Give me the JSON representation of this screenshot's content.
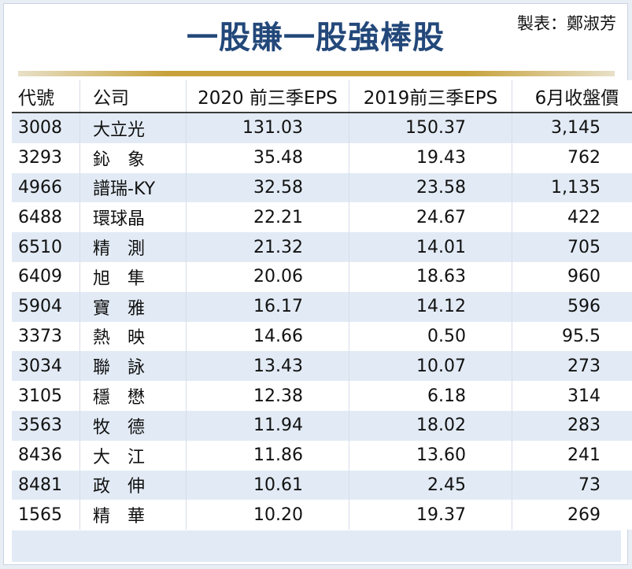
{
  "title": "一股賺一股強棒股",
  "headers": {
    "code": "代號",
    "company": "公司",
    "eps_2020": "2020 前三季EPS",
    "eps_2019": "2019前三季EPS",
    "price": "6月收盤價"
  },
  "rows": [
    {
      "code": "3008",
      "company": "大立光",
      "eps_2020": "131.03",
      "eps_2019": "150.37",
      "price": "3,145"
    },
    {
      "code": "3293",
      "company": "鈊　象",
      "eps_2020": "35.48",
      "eps_2019": "19.43",
      "price": "762"
    },
    {
      "code": "4966",
      "company": "譜瑞-KY",
      "eps_2020": "32.58",
      "eps_2019": "23.58",
      "price": "1,135"
    },
    {
      "code": "6488",
      "company": "環球晶",
      "eps_2020": "22.21",
      "eps_2019": "24.67",
      "price": "422"
    },
    {
      "code": "6510",
      "company": "精　測",
      "eps_2020": "21.32",
      "eps_2019": "14.01",
      "price": "705"
    },
    {
      "code": "6409",
      "company": "旭　隼",
      "eps_2020": "20.06",
      "eps_2019": "18.63",
      "price": "960"
    },
    {
      "code": "5904",
      "company": "寶　雅",
      "eps_2020": "16.17",
      "eps_2019": "14.12",
      "price": "596"
    },
    {
      "code": "3373",
      "company": "熱　映",
      "eps_2020": "14.66",
      "eps_2019": "0.50",
      "price": "95.5"
    },
    {
      "code": "3034",
      "company": "聯　詠",
      "eps_2020": "13.43",
      "eps_2019": "10.07",
      "price": "273"
    },
    {
      "code": "3105",
      "company": "穩　懋",
      "eps_2020": "12.38",
      "eps_2019": "6.18",
      "price": "314"
    },
    {
      "code": "3563",
      "company": "牧　德",
      "eps_2020": "11.94",
      "eps_2019": "18.02",
      "price": "283"
    },
    {
      "code": "8436",
      "company": "大　江",
      "eps_2020": "11.86",
      "eps_2019": "13.60",
      "price": "241"
    },
    {
      "code": "8481",
      "company": "政　伸",
      "eps_2020": "10.61",
      "eps_2019": "2.45",
      "price": "73"
    },
    {
      "code": "1565",
      "company": "精　華",
      "eps_2020": "10.20",
      "eps_2019": "19.37",
      "price": "269"
    }
  ],
  "credit": "製表：鄭淑芳",
  "colors": {
    "title": "#23487a",
    "rule": "#c7a23a",
    "stripe": "#e2ebf5"
  }
}
